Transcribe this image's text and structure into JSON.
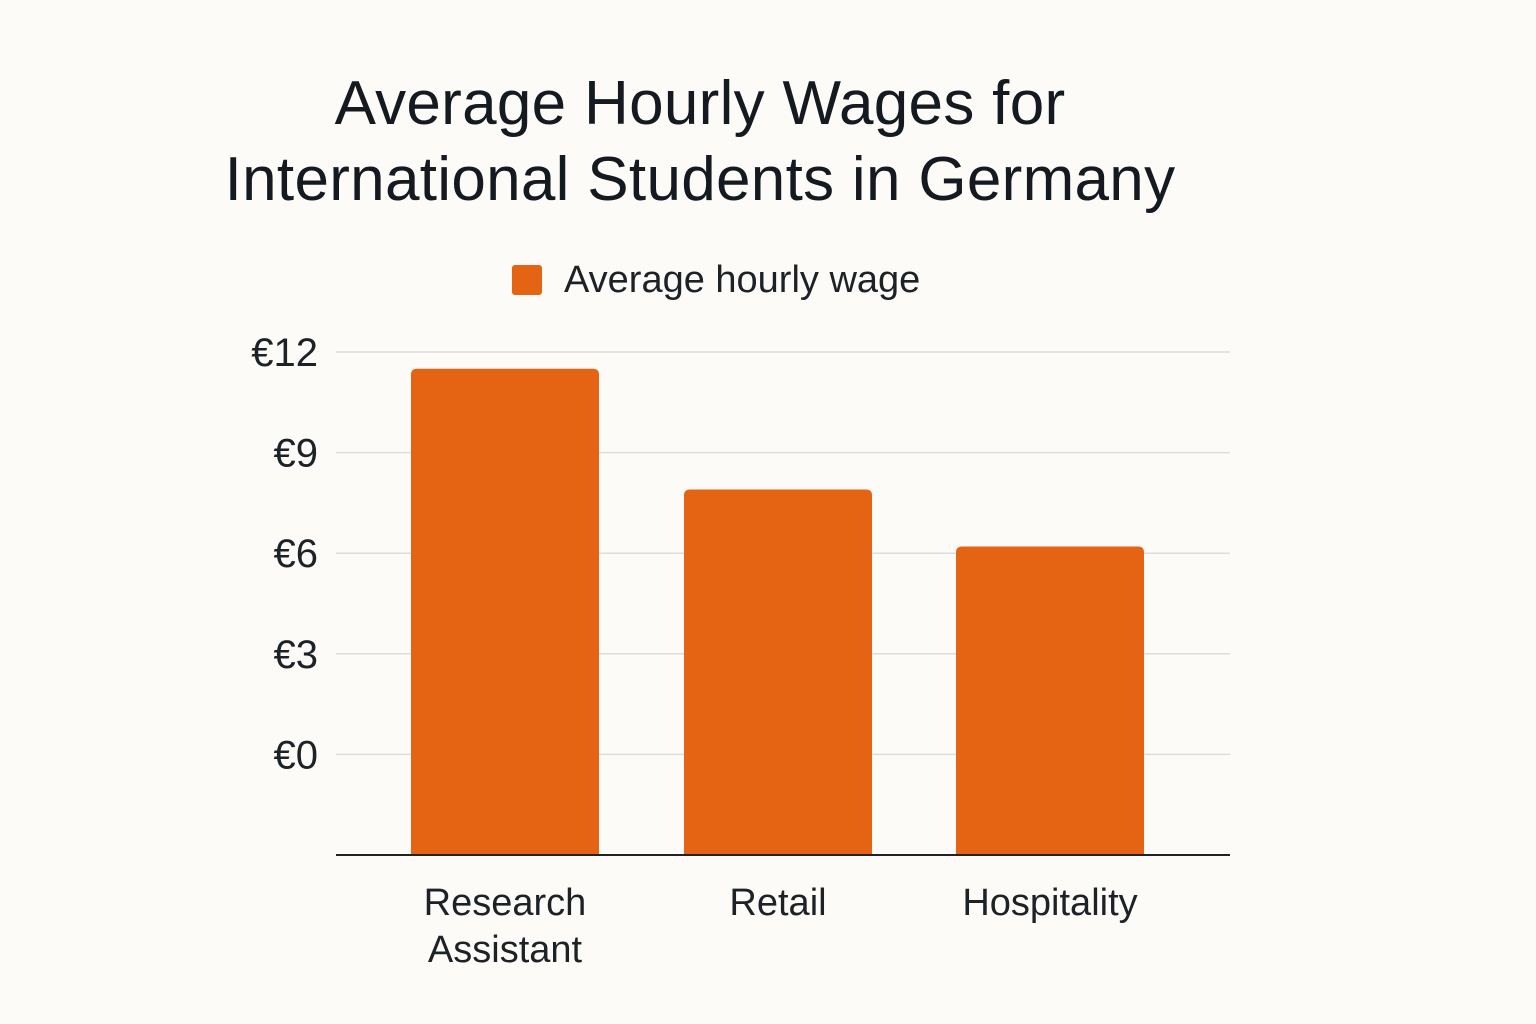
{
  "chart_data": {
    "type": "bar",
    "title": [
      "Average Hourly Wages for",
      "International Students in Germany"
    ],
    "legend": {
      "position": "top-center",
      "label": "Average hourly wage"
    },
    "categories": [
      [
        "Research",
        "Assistant"
      ],
      [
        "Retail"
      ],
      [
        "Hospitality"
      ]
    ],
    "series": [
      {
        "name": "Average hourly wage",
        "values": [
          11.5,
          7.9,
          6.2
        ],
        "color": "#e46414"
      }
    ],
    "y_ticks": [
      {
        "value": 0,
        "label": "€0"
      },
      {
        "value": 3,
        "label": "€3"
      },
      {
        "value": 6,
        "label": "€6"
      },
      {
        "value": 9,
        "label": "€9"
      },
      {
        "value": 12,
        "label": "€12"
      }
    ],
    "ylim": [
      -3,
      12
    ],
    "grid": true,
    "grid_color": "#dddddd",
    "axis_color": "#222222"
  }
}
